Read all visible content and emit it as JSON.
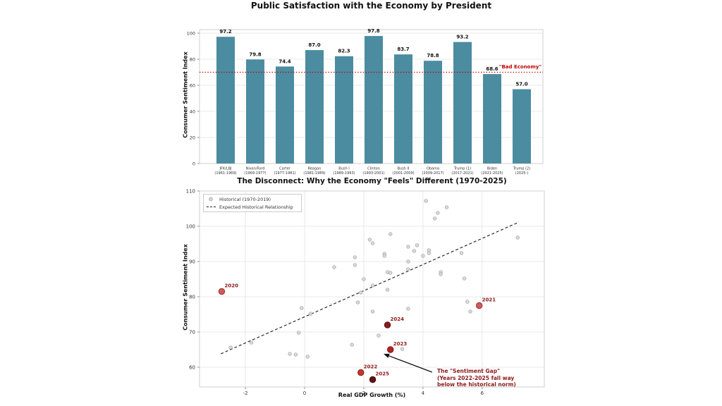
{
  "figure": {
    "background": "#ffffff"
  },
  "chart_data": [
    {
      "type": "bar",
      "title": "Public Satisfaction with the Economy by President",
      "ylabel": "Consumer Sentiment Index",
      "ylim": [
        0,
        102.7
      ],
      "yticks": [
        0,
        20,
        40,
        60,
        80,
        100
      ],
      "grid": "horizontal",
      "bar_color": "#4b8ca1",
      "value_label_color": "#111111",
      "threshold": {
        "value": 70,
        "label": "\"Bad Economy\"",
        "color": "#c00000",
        "style": "dotted"
      },
      "categories": [
        {
          "name": "JFK/LBJ",
          "years": "(1961-1969)"
        },
        {
          "name": "Nixon/Ford",
          "years": "(1969-1977)"
        },
        {
          "name": "Carter",
          "years": "(1977-1981)"
        },
        {
          "name": "Reagan",
          "years": "(1981-1989)"
        },
        {
          "name": "Bush I",
          "years": "(1989-1993)"
        },
        {
          "name": "Clinton",
          "years": "(1993-2001)"
        },
        {
          "name": "Bush II",
          "years": "(2001-2009)"
        },
        {
          "name": "Obama",
          "years": "(2009-2017)"
        },
        {
          "name": "Trump (1)",
          "years": "(2017-2021)"
        },
        {
          "name": "Biden",
          "years": "(2021-2025)"
        },
        {
          "name": "Trump (2)",
          "years": "(2025-)"
        }
      ],
      "values": [
        97.2,
        79.8,
        74.4,
        87.0,
        82.3,
        97.8,
        83.7,
        78.8,
        93.2,
        68.6,
        57.0
      ]
    },
    {
      "type": "scatter",
      "title": "The Disconnect: Why the Economy \"Feels\" Different (1970-2025)",
      "xlabel": "Real GDP Growth (%)",
      "ylabel": "Consumer Sentiment Index",
      "xlim": [
        -3.55,
        8.1
      ],
      "ylim": [
        54.4,
        110
      ],
      "xticks": [
        -2,
        0,
        2,
        4,
        6
      ],
      "yticks": [
        60,
        70,
        80,
        90,
        100,
        110
      ],
      "grid": "both",
      "legend": [
        {
          "label": "Historical (1970-2019)",
          "marker": "circle"
        },
        {
          "label": "Expected Historical Relationship",
          "marker": "dashed-line"
        }
      ],
      "historical_color": "#d6d6d6",
      "historical_edge": "#9e9e9e",
      "historical_points": [
        [
          4.1,
          107.2
        ],
        [
          4.8,
          105.4
        ],
        [
          4.5,
          103.8
        ],
        [
          4.4,
          102.2
        ],
        [
          2.9,
          97.8
        ],
        [
          2.2,
          96.2
        ],
        [
          2.3,
          95.2
        ],
        [
          3.5,
          94.2
        ],
        [
          3.8,
          94.6
        ],
        [
          3.7,
          93.0
        ],
        [
          4.2,
          93.2
        ],
        [
          4.2,
          92.4
        ],
        [
          2.7,
          92.2
        ],
        [
          2.7,
          91.6
        ],
        [
          4.0,
          91.6
        ],
        [
          1.7,
          91.2
        ],
        [
          3.5,
          90.0
        ],
        [
          5.3,
          92.4
        ],
        [
          7.2,
          96.8
        ],
        [
          1.0,
          88.4
        ],
        [
          1.7,
          89.0
        ],
        [
          3.5,
          87.8
        ],
        [
          2.8,
          87.0
        ],
        [
          2.9,
          86.8
        ],
        [
          4.6,
          87.0
        ],
        [
          4.6,
          86.4
        ],
        [
          5.4,
          85.2
        ],
        [
          2.0,
          85.0
        ],
        [
          2.3,
          83.2
        ],
        [
          2.8,
          82.0
        ],
        [
          1.9,
          81.2
        ],
        [
          1.8,
          78.4
        ],
        [
          5.5,
          78.6
        ],
        [
          5.6,
          75.8
        ],
        [
          2.3,
          75.8
        ],
        [
          -0.1,
          76.8
        ],
        [
          0.2,
          75.2
        ],
        [
          -0.2,
          69.8
        ],
        [
          2.5,
          69.0
        ],
        [
          -2.5,
          65.6
        ],
        [
          -1.8,
          67.0
        ],
        [
          1.6,
          66.4
        ],
        [
          3.3,
          65.2
        ],
        [
          -0.5,
          63.8
        ],
        [
          -0.3,
          63.6
        ],
        [
          0.1,
          63.0
        ],
        [
          3.5,
          76.6
        ]
      ],
      "trend_line": {
        "x_start": -2.83,
        "x_end": 7.19,
        "slope": 3.71,
        "intercept": 74.3,
        "color": "#1a1a1a"
      },
      "recent_points": [
        {
          "year": "2020",
          "x": -2.8,
          "y": 81.5,
          "color": "#cd5c5c",
          "edge": "#a03025"
        },
        {
          "year": "2021",
          "x": 5.9,
          "y": 77.5,
          "color": "#cd5c5c",
          "edge": "#a03025"
        },
        {
          "year": "2022",
          "x": 1.9,
          "y": 58.5,
          "color": "#c0392b",
          "edge": "#8b1a1a"
        },
        {
          "year": "2023",
          "x": 2.9,
          "y": 65.0,
          "color": "#b22222",
          "edge": "#7a1010"
        },
        {
          "year": "2024",
          "x": 2.8,
          "y": 72.0,
          "color": "#8b1a1a",
          "edge": "#5e0d0d"
        },
        {
          "year": "2025",
          "x": 2.3,
          "y": 56.5,
          "color": "#641212",
          "edge": "#3f0808"
        }
      ],
      "year_label_color": "#8b1a1a",
      "annotation": {
        "lines": [
          "The \"Sentiment Gap\"",
          "(Years 2022-2025 fall way",
          "below the historical norm)"
        ],
        "color": "#8b1a1a",
        "arrow_tail": {
          "x": 4.31,
          "y": 58.6
        },
        "arrow_tip": {
          "x": 2.67,
          "y": 63.8
        }
      }
    }
  ]
}
